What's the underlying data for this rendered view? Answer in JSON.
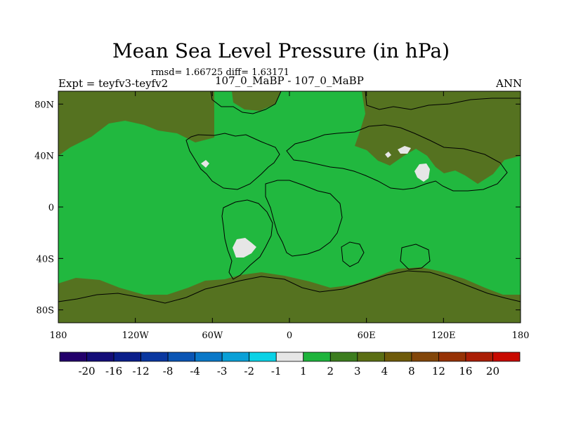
{
  "header": {
    "title": "Mean Sea Level Pressure (in hPa)",
    "stats": "rmsd= 1.66725 diff= 1.63171",
    "experiment": "Expt = teyfv3-teyfv2",
    "subtitle": "107_0_MaBP - 107_0_MaBP",
    "season": "ANN"
  },
  "axes": {
    "x_ticks": [
      {
        "lon": -180,
        "label": "180"
      },
      {
        "lon": -120,
        "label": "120W"
      },
      {
        "lon": -60,
        "label": "60W"
      },
      {
        "lon": 0,
        "label": "0"
      },
      {
        "lon": 60,
        "label": "60E"
      },
      {
        "lon": 120,
        "label": "120E"
      },
      {
        "lon": 180,
        "label": "180"
      }
    ],
    "y_ticks": [
      {
        "lat": 80,
        "label": "80N"
      },
      {
        "lat": 40,
        "label": "40N"
      },
      {
        "lat": 0,
        "label": "0"
      },
      {
        "lat": -40,
        "label": "40S"
      },
      {
        "lat": -80,
        "label": "80S"
      }
    ],
    "lon_range": [
      -180,
      180
    ],
    "lat_range": [
      -90,
      90
    ]
  },
  "colorbar": {
    "colors": [
      "#23006b",
      "#140d78",
      "#0a1e8a",
      "#0a37a0",
      "#0a55b4",
      "#0a78c8",
      "#0aa0d7",
      "#0ad2e6",
      "#e6e6e6",
      "#1eb43c",
      "#3c7d1e",
      "#5a6e14",
      "#6e5a0a",
      "#82460a",
      "#963205",
      "#aa1e05",
      "#c80a00"
    ],
    "labels": [
      "-20",
      "-16",
      "-12",
      "-8",
      "-4",
      "-3",
      "-2",
      "-1",
      "1",
      "2",
      "3",
      "4",
      "8",
      "12",
      "16",
      "20"
    ]
  },
  "map_colors": {
    "low_diff_green": "#21b83f",
    "high_diff_olive": "#557220",
    "near_zero_grey": "#e6e6e6",
    "coastline": "#000000"
  }
}
